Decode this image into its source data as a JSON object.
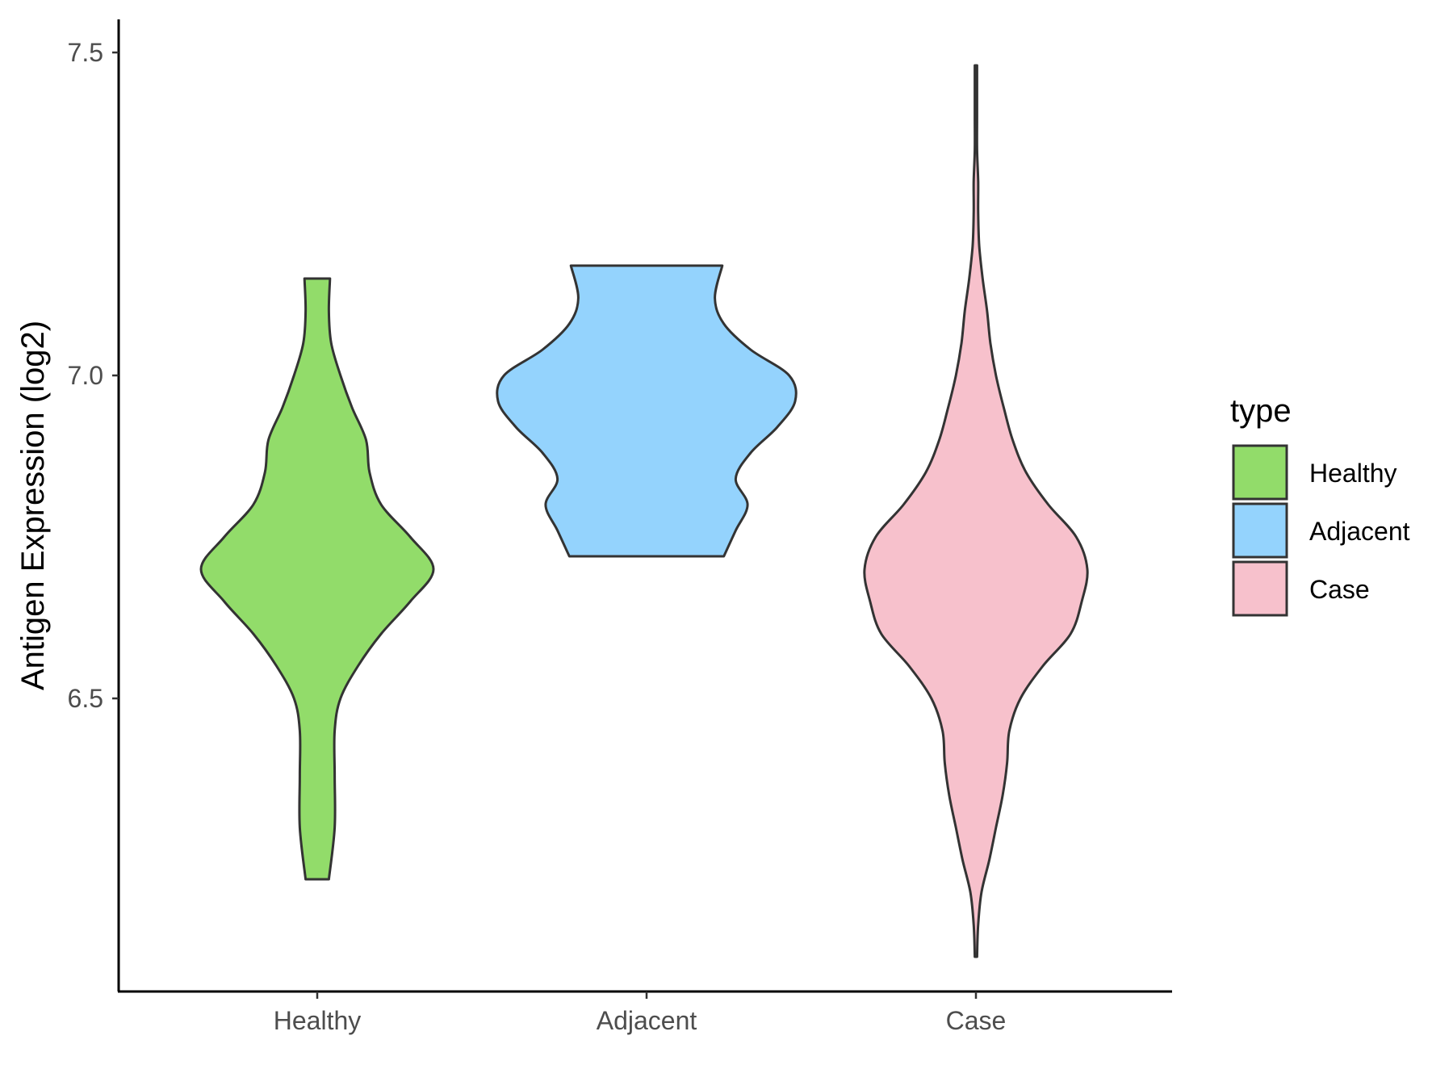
{
  "chart_data": {
    "type": "violin",
    "xlabel": "",
    "ylabel": "Antigen Expression (log2)",
    "ylim": [
      6.05,
      7.55
    ],
    "yticks": [
      "6.5",
      "7.0",
      "7.5"
    ],
    "categories": [
      "Healthy",
      "Adjacent",
      "Case"
    ],
    "grid": false,
    "legend": {
      "title": "type",
      "placement": "right",
      "entries": [
        "Healthy",
        "Adjacent",
        "Case"
      ]
    },
    "colors": {
      "Healthy": "#92dc6a",
      "Adjacent": "#94d3fd",
      "Case": "#f7c1cc",
      "outline": "#333333"
    },
    "series": [
      {
        "name": "Healthy",
        "min": 6.22,
        "max": 7.15,
        "profile": [
          [
            6.22,
            0.1
          ],
          [
            6.3,
            0.15
          ],
          [
            6.38,
            0.15
          ],
          [
            6.45,
            0.15
          ],
          [
            6.5,
            0.2
          ],
          [
            6.55,
            0.35
          ],
          [
            6.6,
            0.55
          ],
          [
            6.65,
            0.8
          ],
          [
            6.7,
            1.0
          ],
          [
            6.75,
            0.8
          ],
          [
            6.8,
            0.55
          ],
          [
            6.85,
            0.45
          ],
          [
            6.9,
            0.42
          ],
          [
            6.95,
            0.3
          ],
          [
            7.0,
            0.2
          ],
          [
            7.05,
            0.12
          ],
          [
            7.1,
            0.1
          ],
          [
            7.15,
            0.11
          ]
        ]
      },
      {
        "name": "Adjacent",
        "min": 6.72,
        "max": 7.17,
        "profile": [
          [
            6.72,
            0.52
          ],
          [
            6.76,
            0.6
          ],
          [
            6.8,
            0.68
          ],
          [
            6.84,
            0.6
          ],
          [
            6.88,
            0.7
          ],
          [
            6.92,
            0.88
          ],
          [
            6.96,
            1.0
          ],
          [
            7.0,
            0.96
          ],
          [
            7.04,
            0.7
          ],
          [
            7.08,
            0.52
          ],
          [
            7.12,
            0.46
          ],
          [
            7.17,
            0.51
          ]
        ]
      },
      {
        "name": "Case",
        "min": 6.1,
        "max": 7.48,
        "profile": [
          [
            6.1,
            0.01
          ],
          [
            6.15,
            0.02
          ],
          [
            6.2,
            0.05
          ],
          [
            6.25,
            0.12
          ],
          [
            6.3,
            0.18
          ],
          [
            6.35,
            0.24
          ],
          [
            6.4,
            0.28
          ],
          [
            6.45,
            0.3
          ],
          [
            6.5,
            0.4
          ],
          [
            6.55,
            0.6
          ],
          [
            6.6,
            0.85
          ],
          [
            6.65,
            0.95
          ],
          [
            6.7,
            1.0
          ],
          [
            6.75,
            0.9
          ],
          [
            6.8,
            0.65
          ],
          [
            6.85,
            0.45
          ],
          [
            6.9,
            0.33
          ],
          [
            6.95,
            0.25
          ],
          [
            7.0,
            0.18
          ],
          [
            7.05,
            0.13
          ],
          [
            7.1,
            0.1
          ],
          [
            7.15,
            0.06
          ],
          [
            7.2,
            0.03
          ],
          [
            7.25,
            0.02
          ],
          [
            7.3,
            0.02
          ],
          [
            7.35,
            0.01
          ],
          [
            7.4,
            0.01
          ],
          [
            7.48,
            0.01
          ]
        ]
      }
    ]
  }
}
